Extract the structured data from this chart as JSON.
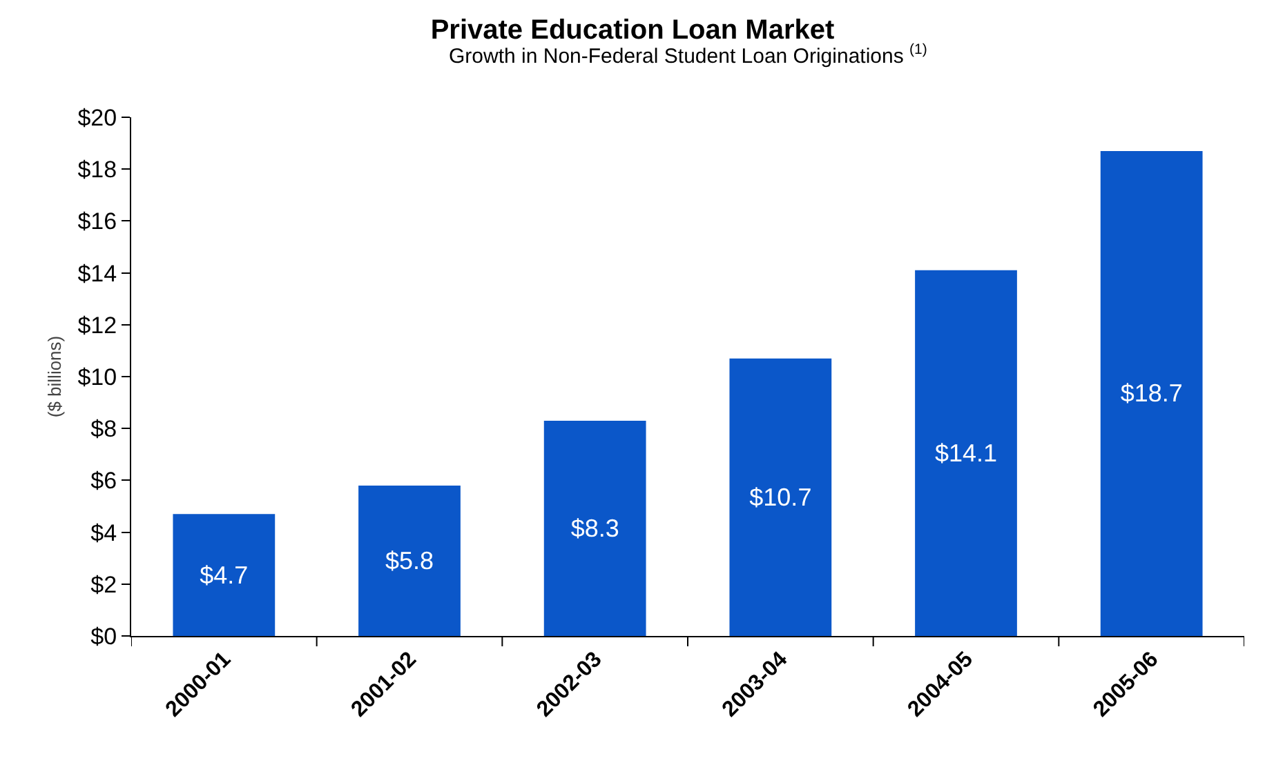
{
  "chart_data": {
    "type": "bar",
    "title": "Private Education Loan Market",
    "subtitle": "Growth in Non-Federal Student Loan Originations $^{(1)}$",
    "ylabel": "($ billions)",
    "categories": [
      "2000-01",
      "2001-02",
      "2002-03",
      "2003-04",
      "2004-05",
      "2005-06"
    ],
    "values": [
      4.7,
      5.8,
      8.3,
      10.7,
      14.1,
      18.7
    ],
    "value_labels": [
      "$4.7",
      "$5.8",
      "$8.3",
      "$10.7",
      "$14.1",
      "$18.7"
    ],
    "color": "#0b57c9",
    "ylim": [
      0,
      20
    ],
    "yticks": [
      {
        "value": 0,
        "label": "$0"
      },
      {
        "value": 2,
        "label": "$2"
      },
      {
        "value": 4,
        "label": "$4"
      },
      {
        "value": 6,
        "label": "$6"
      },
      {
        "value": 8,
        "label": "$8"
      },
      {
        "value": 10,
        "label": "$10"
      },
      {
        "value": 12,
        "label": "$12"
      },
      {
        "value": 14,
        "label": "$14"
      },
      {
        "value": 16,
        "label": "$16"
      },
      {
        "value": 18,
        "label": "$18"
      },
      {
        "value": 20,
        "label": "$20"
      }
    ]
  }
}
